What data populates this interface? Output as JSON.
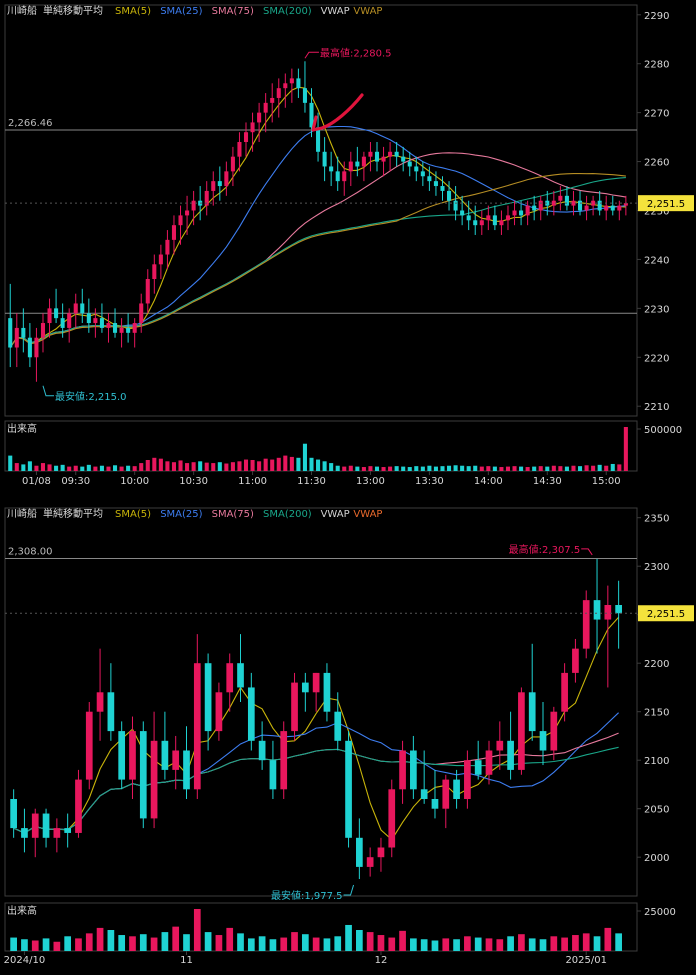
{
  "colors": {
    "bg": "#000000",
    "frame": "#3c3c3c",
    "grid": "#1a1a1a",
    "text": "#d8d8d8",
    "up": "#e8175d",
    "down": "#1fd3d3",
    "sma5": "#c8b40a",
    "sma25": "#3d7df0",
    "sma75": "#e6799c",
    "sma200": "#19a689",
    "vwap": "#d2d2d2",
    "vwap2": "#b58d24",
    "price_tag_bg": "#f4e23c",
    "price_tag_text": "#000000",
    "annot": "#e8175d",
    "low_annot": "#2fbfd1",
    "hand_mark": "#e0143c"
  },
  "chart_data": [
    {
      "type": "candlestick",
      "symbol": "川崎船",
      "indicator_title": "単純移動平均",
      "legend": [
        {
          "label": "SMA(5)",
          "color": "#c8b40a"
        },
        {
          "label": "SMA(25)",
          "color": "#3d7df0"
        },
        {
          "label": "SMA(75)",
          "color": "#e6799c"
        },
        {
          "label": "SMA(200)",
          "color": "#19a689"
        },
        {
          "label": "VWAP",
          "color": "#d2d2d2"
        },
        {
          "label": "VWAP",
          "color": "#b58d24"
        }
      ],
      "ylim": [
        2208,
        2292
      ],
      "yticks": [
        2210,
        2220,
        2230,
        2240,
        2250,
        2260,
        2270,
        2280,
        2290
      ],
      "xticks": [
        {
          "i": 4,
          "label": "01/08"
        },
        {
          "i": 10,
          "label": "09:30"
        },
        {
          "i": 19,
          "label": "10:00"
        },
        {
          "i": 28,
          "label": "10:30"
        },
        {
          "i": 37,
          "label": "11:00"
        },
        {
          "i": 46,
          "label": "11:30"
        },
        {
          "i": 55,
          "label": "13:00"
        },
        {
          "i": 64,
          "label": "13:30"
        },
        {
          "i": 73,
          "label": "14:00"
        },
        {
          "i": 82,
          "label": "14:30"
        },
        {
          "i": 91,
          "label": "15:00"
        }
      ],
      "current_price": "2,251.5",
      "current_value": 2251.5,
      "ref_line": {
        "value": 2266.46,
        "label": "2,266.46"
      },
      "low_line": {
        "value": 2229.0
      },
      "high_annot": {
        "i": 45,
        "value": 2280.5,
        "label": "最高値:2,280.5"
      },
      "low_annot": {
        "i": 5,
        "value": 2215.0,
        "label": "最安値:2,215.0"
      },
      "volume_label": "出来高",
      "volume_max_label": "500000",
      "volume_max": 500000,
      "ohlc": [
        [
          2228,
          2235,
          2218,
          2222
        ],
        [
          2222,
          2229,
          2218,
          2226
        ],
        [
          2226,
          2230,
          2221,
          2224
        ],
        [
          2224,
          2227,
          2218,
          2220
        ],
        [
          2220,
          2226,
          2215,
          2224
        ],
        [
          2224,
          2229,
          2221,
          2227
        ],
        [
          2227,
          2232,
          2224,
          2230
        ],
        [
          2230,
          2234,
          2227,
          2228
        ],
        [
          2228,
          2231,
          2224,
          2226
        ],
        [
          2226,
          2230,
          2223,
          2229
        ],
        [
          2229,
          2233,
          2226,
          2231
        ],
        [
          2231,
          2234,
          2227,
          2229
        ],
        [
          2229,
          2232,
          2225,
          2227
        ],
        [
          2227,
          2230,
          2224,
          2228
        ],
        [
          2228,
          2231,
          2225,
          2226
        ],
        [
          2226,
          2229,
          2223,
          2227
        ],
        [
          2227,
          2230,
          2224,
          2225
        ],
        [
          2225,
          2228,
          2222,
          2226
        ],
        [
          2226,
          2229,
          2223,
          2225
        ],
        [
          2225,
          2228,
          2222,
          2227
        ],
        [
          2227,
          2233,
          2225,
          2231
        ],
        [
          2231,
          2238,
          2229,
          2236
        ],
        [
          2236,
          2241,
          2233,
          2239
        ],
        [
          2239,
          2243,
          2236,
          2241
        ],
        [
          2241,
          2246,
          2238,
          2244
        ],
        [
          2244,
          2249,
          2241,
          2247
        ],
        [
          2247,
          2251,
          2243,
          2249
        ],
        [
          2249,
          2253,
          2245,
          2250
        ],
        [
          2250,
          2254,
          2247,
          2252
        ],
        [
          2252,
          2255,
          2248,
          2251
        ],
        [
          2251,
          2256,
          2249,
          2254
        ],
        [
          2254,
          2258,
          2251,
          2256
        ],
        [
          2256,
          2259,
          2252,
          2255
        ],
        [
          2255,
          2260,
          2253,
          2258
        ],
        [
          2258,
          2263,
          2255,
          2261
        ],
        [
          2261,
          2266,
          2258,
          2264
        ],
        [
          2264,
          2268,
          2261,
          2266
        ],
        [
          2266,
          2270,
          2262,
          2268
        ],
        [
          2268,
          2272,
          2264,
          2270
        ],
        [
          2270,
          2274,
          2266,
          2272
        ],
        [
          2272,
          2276,
          2268,
          2273
        ],
        [
          2273,
          2277,
          2269,
          2275
        ],
        [
          2275,
          2278,
          2271,
          2276
        ],
        [
          2276,
          2279,
          2272,
          2277
        ],
        [
          2277,
          2279,
          2273,
          2275
        ],
        [
          2275,
          2280.5,
          2270,
          2272
        ],
        [
          2272,
          2275,
          2265,
          2267
        ],
        [
          2267,
          2270,
          2260,
          2262
        ],
        [
          2262,
          2265,
          2256,
          2259
        ],
        [
          2259,
          2262,
          2255,
          2258
        ],
        [
          2258,
          2261,
          2254,
          2256
        ],
        [
          2256,
          2260,
          2253,
          2258
        ],
        [
          2258,
          2262,
          2255,
          2260
        ],
        [
          2260,
          2263,
          2257,
          2259
        ],
        [
          2259,
          2262,
          2256,
          2261
        ],
        [
          2261,
          2264,
          2258,
          2262
        ],
        [
          2262,
          2264,
          2258,
          2260
        ],
        [
          2260,
          2263,
          2257,
          2261
        ],
        [
          2261,
          2264,
          2258,
          2262
        ],
        [
          2262,
          2264,
          2259,
          2261
        ],
        [
          2261,
          2263,
          2258,
          2260
        ],
        [
          2260,
          2262,
          2257,
          2259
        ],
        [
          2259,
          2261,
          2256,
          2258
        ],
        [
          2258,
          2260,
          2255,
          2257
        ],
        [
          2257,
          2259,
          2254,
          2256
        ],
        [
          2256,
          2258,
          2253,
          2255
        ],
        [
          2255,
          2257,
          2252,
          2254
        ],
        [
          2254,
          2256,
          2250,
          2252
        ],
        [
          2252,
          2255,
          2248,
          2250
        ],
        [
          2250,
          2253,
          2247,
          2249
        ],
        [
          2249,
          2252,
          2246,
          2248
        ],
        [
          2248,
          2251,
          2245,
          2247
        ],
        [
          2247,
          2250,
          2245,
          2248
        ],
        [
          2248,
          2251,
          2246,
          2249
        ],
        [
          2249,
          2251,
          2246,
          2247
        ],
        [
          2247,
          2250,
          2245,
          2248
        ],
        [
          2248,
          2251,
          2246,
          2249
        ],
        [
          2249,
          2252,
          2247,
          2250
        ],
        [
          2250,
          2252,
          2247,
          2249
        ],
        [
          2249,
          2252,
          2247,
          2251
        ],
        [
          2251,
          2253,
          2248,
          2250
        ],
        [
          2250,
          2253,
          2248,
          2252
        ],
        [
          2252,
          2254,
          2249,
          2251
        ],
        [
          2251,
          2254,
          2249,
          2252
        ],
        [
          2252,
          2255,
          2250,
          2253
        ],
        [
          2253,
          2255,
          2250,
          2251
        ],
        [
          2251,
          2254,
          2249,
          2252
        ],
        [
          2252,
          2254,
          2249,
          2250
        ],
        [
          2250,
          2253,
          2248,
          2251
        ],
        [
          2251,
          2253,
          2249,
          2252
        ],
        [
          2252,
          2254,
          2249,
          2250
        ],
        [
          2250,
          2253,
          2248,
          2251
        ],
        [
          2251,
          2253,
          2249,
          2250
        ],
        [
          2250,
          2252,
          2248,
          2251
        ],
        [
          2251,
          2253,
          2249,
          2251.5
        ]
      ],
      "volume": [
        0.35,
        0.18,
        0.15,
        0.22,
        0.12,
        0.18,
        0.15,
        0.12,
        0.14,
        0.1,
        0.12,
        0.1,
        0.14,
        0.1,
        0.12,
        0.1,
        0.13,
        0.1,
        0.12,
        0.11,
        0.18,
        0.25,
        0.3,
        0.28,
        0.22,
        0.2,
        0.24,
        0.18,
        0.2,
        0.22,
        0.19,
        0.18,
        0.2,
        0.17,
        0.2,
        0.22,
        0.26,
        0.25,
        0.22,
        0.28,
        0.26,
        0.3,
        0.35,
        0.32,
        0.3,
        0.62,
        0.3,
        0.26,
        0.22,
        0.18,
        0.12,
        0.1,
        0.12,
        0.1,
        0.09,
        0.11,
        0.1,
        0.09,
        0.1,
        0.11,
        0.1,
        0.09,
        0.11,
        0.1,
        0.12,
        0.1,
        0.11,
        0.12,
        0.13,
        0.12,
        0.11,
        0.12,
        0.1,
        0.11,
        0.1,
        0.09,
        0.1,
        0.11,
        0.1,
        0.09,
        0.1,
        0.11,
        0.1,
        0.12,
        0.11,
        0.1,
        0.12,
        0.11,
        0.13,
        0.12,
        0.14,
        0.12,
        0.16,
        0.15,
        1.0
      ]
    },
    {
      "type": "candlestick",
      "symbol": "川崎船",
      "indicator_title": "単純移動平均",
      "legend": [
        {
          "label": "SMA(5)",
          "color": "#c8b40a"
        },
        {
          "label": "SMA(25)",
          "color": "#3d7df0"
        },
        {
          "label": "SMA(75)",
          "color": "#e6799c"
        },
        {
          "label": "SMA(200)",
          "color": "#19a689"
        },
        {
          "label": "VWAP",
          "color": "#d2d2d2"
        },
        {
          "label": "VWAP",
          "color": "#e8692c"
        }
      ],
      "ylim": [
        1960,
        2360
      ],
      "yticks": [
        2000,
        2050,
        2100,
        2150,
        2200,
        2250,
        2300,
        2350
      ],
      "xticks": [
        {
          "i": 1,
          "label": "2024/10"
        },
        {
          "i": 16,
          "label": "11"
        },
        {
          "i": 34,
          "label": "12"
        },
        {
          "i": 53,
          "label": "2025/01"
        }
      ],
      "current_price": "2,251.5",
      "current_value": 2251.5,
      "ref_line": {
        "value": 2308.0,
        "label": "2,308.00"
      },
      "high_annot": {
        "i": 53,
        "value": 2307.5,
        "label": "最高値:2,307.5"
      },
      "low_annot": {
        "i": 31,
        "value": 1977.5,
        "label": "最安値:1,977.5"
      },
      "volume_label": "出来高",
      "volume_max_label": "25000",
      "volume_max": 25000,
      "ohlc": [
        [
          2060,
          2070,
          2020,
          2030
        ],
        [
          2030,
          2050,
          2005,
          2020
        ],
        [
          2020,
          2050,
          2000,
          2045
        ],
        [
          2045,
          2050,
          2010,
          2020
        ],
        [
          2020,
          2040,
          2005,
          2030
        ],
        [
          2030,
          2045,
          2010,
          2025
        ],
        [
          2025,
          2090,
          2020,
          2080
        ],
        [
          2080,
          2160,
          2070,
          2150
        ],
        [
          2150,
          2215,
          2120,
          2170
        ],
        [
          2170,
          2200,
          2120,
          2130
        ],
        [
          2130,
          2140,
          2070,
          2080
        ],
        [
          2080,
          2145,
          2060,
          2130
        ],
        [
          2130,
          2140,
          2030,
          2040
        ],
        [
          2040,
          2150,
          2030,
          2120
        ],
        [
          2120,
          2150,
          2080,
          2090
        ],
        [
          2090,
          2125,
          2070,
          2110
        ],
        [
          2110,
          2135,
          2060,
          2070
        ],
        [
          2070,
          2230,
          2060,
          2200
        ],
        [
          2200,
          2210,
          2110,
          2130
        ],
        [
          2130,
          2180,
          2120,
          2170
        ],
        [
          2170,
          2210,
          2150,
          2200
        ],
        [
          2200,
          2230,
          2160,
          2175
        ],
        [
          2175,
          2190,
          2110,
          2120
        ],
        [
          2120,
          2140,
          2090,
          2100
        ],
        [
          2100,
          2120,
          2060,
          2070
        ],
        [
          2070,
          2140,
          2060,
          2130
        ],
        [
          2130,
          2190,
          2120,
          2180
        ],
        [
          2180,
          2190,
          2150,
          2170
        ],
        [
          2170,
          2190,
          2150,
          2190
        ],
        [
          2190,
          2200,
          2140,
          2150
        ],
        [
          2150,
          2170,
          2110,
          2120
        ],
        [
          2120,
          2130,
          2010,
          2020
        ],
        [
          2020,
          2040,
          1977.5,
          1990
        ],
        [
          1990,
          2010,
          1980,
          2000
        ],
        [
          2000,
          2020,
          1985,
          2010
        ],
        [
          2010,
          2080,
          2000,
          2070
        ],
        [
          2070,
          2120,
          2055,
          2110
        ],
        [
          2110,
          2125,
          2060,
          2070
        ],
        [
          2070,
          2110,
          2055,
          2060
        ],
        [
          2060,
          2090,
          2040,
          2050
        ],
        [
          2050,
          2085,
          2030,
          2080
        ],
        [
          2080,
          2090,
          2050,
          2060
        ],
        [
          2060,
          2110,
          2050,
          2100
        ],
        [
          2100,
          2120,
          2080,
          2085
        ],
        [
          2085,
          2120,
          2075,
          2110
        ],
        [
          2110,
          2140,
          2090,
          2120
        ],
        [
          2120,
          2150,
          2080,
          2090
        ],
        [
          2090,
          2175,
          2085,
          2170
        ],
        [
          2170,
          2220,
          2120,
          2130
        ],
        [
          2130,
          2160,
          2095,
          2110
        ],
        [
          2110,
          2155,
          2100,
          2150
        ],
        [
          2150,
          2200,
          2140,
          2190
        ],
        [
          2190,
          2225,
          2180,
          2215
        ],
        [
          2215,
          2275,
          2205,
          2265
        ],
        [
          2265,
          2307.5,
          2210,
          2245
        ],
        [
          2245,
          2280,
          2175,
          2260
        ],
        [
          2260,
          2285,
          2215,
          2251.5
        ]
      ],
      "volume": [
        0.32,
        0.28,
        0.25,
        0.3,
        0.22,
        0.35,
        0.3,
        0.42,
        0.55,
        0.5,
        0.38,
        0.35,
        0.4,
        0.32,
        0.45,
        0.58,
        0.4,
        1.0,
        0.45,
        0.38,
        0.55,
        0.42,
        0.3,
        0.35,
        0.28,
        0.32,
        0.45,
        0.4,
        0.32,
        0.3,
        0.35,
        0.62,
        0.5,
        0.45,
        0.38,
        0.32,
        0.48,
        0.3,
        0.28,
        0.25,
        0.3,
        0.28,
        0.35,
        0.32,
        0.3,
        0.28,
        0.35,
        0.4,
        0.3,
        0.28,
        0.35,
        0.32,
        0.38,
        0.42,
        0.35,
        0.55,
        0.42
      ]
    }
  ]
}
